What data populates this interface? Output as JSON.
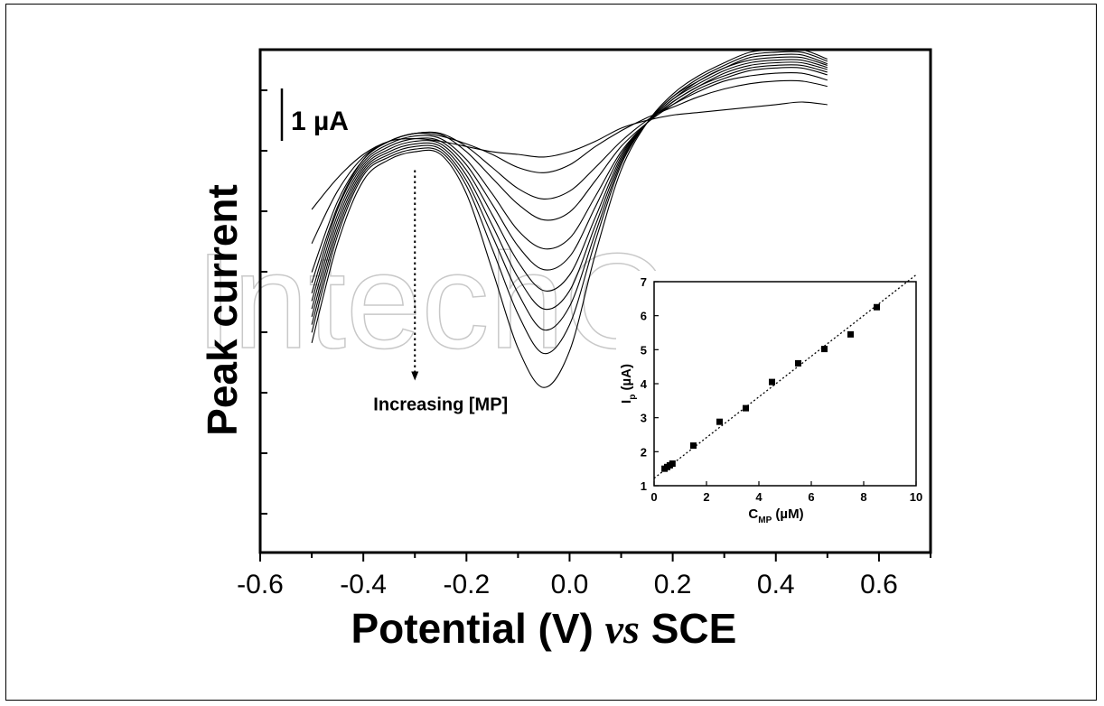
{
  "watermark": "IntechOpen",
  "chart_data": [
    {
      "type": "line",
      "xlabel_parts": [
        "Potential (V) ",
        "vs",
        " SCE"
      ],
      "ylabel": "Peak current",
      "xlim": [
        -0.6,
        0.7
      ],
      "xticks": [
        "-0.6",
        "-0.4",
        "-0.2",
        "0.0",
        "0.2",
        "0.4",
        "0.6"
      ],
      "ylim": [
        -8.7,
        0.9
      ],
      "grid": false,
      "scale_bar": {
        "label": "1 µA",
        "value": 1
      },
      "annotation": {
        "text": "Increasing [MP]",
        "x": -0.3,
        "y_from": -1.4,
        "y_to": -5.4
      },
      "x": [
        -0.5,
        -0.45,
        -0.4,
        -0.35,
        -0.3,
        -0.25,
        -0.2,
        -0.15,
        -0.1,
        -0.05,
        0.0,
        0.05,
        0.1,
        0.15,
        0.2,
        0.25,
        0.3,
        0.35,
        0.4,
        0.45,
        0.5
      ],
      "series": [
        {
          "values": [
            -2.15,
            -1.55,
            -1.1,
            -0.85,
            -0.8,
            -0.85,
            -0.95,
            -1.05,
            -1.1,
            -1.15,
            -1.05,
            -0.85,
            -0.6,
            -0.45,
            -0.35,
            -0.3,
            -0.25,
            -0.2,
            -0.15,
            -0.1,
            -0.15
          ]
        },
        {
          "values": [
            -2.8,
            -1.8,
            -1.15,
            -0.85,
            -0.7,
            -0.75,
            -0.9,
            -1.1,
            -1.35,
            -1.45,
            -1.3,
            -0.95,
            -0.65,
            -0.4,
            -0.2,
            0.0,
            0.15,
            0.25,
            0.3,
            0.3,
            0.2
          ]
        },
        {
          "values": [
            -3.35,
            -2.0,
            -1.2,
            -0.85,
            -0.7,
            -0.7,
            -0.95,
            -1.35,
            -1.75,
            -1.95,
            -1.8,
            -1.35,
            -0.85,
            -0.45,
            -0.15,
            0.1,
            0.3,
            0.4,
            0.45,
            0.45,
            0.32
          ]
        },
        {
          "values": [
            -3.55,
            -2.1,
            -1.2,
            -0.85,
            -0.7,
            -0.72,
            -1.05,
            -1.55,
            -2.05,
            -2.35,
            -2.2,
            -1.6,
            -0.95,
            -0.5,
            -0.15,
            0.15,
            0.35,
            0.5,
            0.55,
            0.55,
            0.42
          ]
        },
        {
          "values": [
            -3.75,
            -2.15,
            -1.25,
            -0.9,
            -0.75,
            -0.8,
            -1.2,
            -1.85,
            -2.55,
            -2.9,
            -2.7,
            -1.9,
            -1.05,
            -0.5,
            -0.1,
            0.2,
            0.4,
            0.55,
            0.6,
            0.6,
            0.47
          ]
        },
        {
          "values": [
            -3.9,
            -2.25,
            -1.3,
            -0.95,
            -0.8,
            -0.85,
            -1.3,
            -2.05,
            -2.85,
            -3.3,
            -3.05,
            -2.1,
            -1.1,
            -0.5,
            -0.1,
            0.2,
            0.45,
            0.6,
            0.65,
            0.65,
            0.52
          ]
        },
        {
          "values": [
            -4.05,
            -2.35,
            -1.35,
            -1.0,
            -0.85,
            -0.9,
            -1.4,
            -2.25,
            -3.15,
            -3.7,
            -3.4,
            -2.3,
            -1.15,
            -0.5,
            -0.05,
            0.25,
            0.5,
            0.65,
            0.7,
            0.7,
            0.56
          ]
        },
        {
          "values": [
            -4.2,
            -2.45,
            -1.4,
            -1.05,
            -0.9,
            -0.95,
            -1.5,
            -2.45,
            -3.45,
            -4.05,
            -3.7,
            -2.45,
            -1.2,
            -0.5,
            -0.05,
            0.3,
            0.55,
            0.7,
            0.75,
            0.75,
            0.6
          ]
        },
        {
          "values": [
            -4.35,
            -2.55,
            -1.45,
            -1.1,
            -0.95,
            -1.0,
            -1.6,
            -2.65,
            -3.75,
            -4.45,
            -4.0,
            -2.6,
            -1.25,
            -0.5,
            0.0,
            0.3,
            0.55,
            0.75,
            0.8,
            0.8,
            0.63
          ]
        },
        {
          "values": [
            -4.5,
            -2.65,
            -1.5,
            -1.15,
            -1.0,
            -1.05,
            -1.7,
            -2.9,
            -4.15,
            -4.9,
            -4.35,
            -2.75,
            -1.3,
            -0.5,
            0.0,
            0.35,
            0.6,
            0.8,
            0.85,
            0.85,
            0.68
          ]
        },
        {
          "values": [
            -4.7,
            -2.8,
            -1.6,
            -1.2,
            -1.05,
            -1.1,
            -1.85,
            -3.3,
            -4.8,
            -5.55,
            -4.85,
            -3.0,
            -1.4,
            -0.5,
            0.05,
            0.4,
            0.65,
            0.85,
            0.9,
            0.9,
            0.72
          ]
        }
      ]
    },
    {
      "type": "scatter",
      "xlabel": "C",
      "xlabel_sub": "MP",
      "xlabel_unit": " (µM)",
      "ylabel": "I",
      "ylabel_sub": "p",
      "ylabel_unit": " (µA)",
      "xlim": [
        0,
        10
      ],
      "ylim": [
        1,
        7
      ],
      "xticks": [
        "0",
        "2",
        "4",
        "6",
        "8",
        "10"
      ],
      "yticks": [
        "1",
        "2",
        "3",
        "4",
        "5",
        "6",
        "7"
      ],
      "grid": false,
      "points": [
        [
          0.4,
          1.5
        ],
        [
          0.5,
          1.55
        ],
        [
          0.6,
          1.6
        ],
        [
          0.7,
          1.65
        ],
        [
          1.5,
          2.18
        ],
        [
          2.5,
          2.88
        ],
        [
          3.5,
          3.28
        ],
        [
          4.5,
          4.05
        ],
        [
          5.5,
          4.6
        ],
        [
          6.5,
          5.02
        ],
        [
          7.5,
          5.45
        ],
        [
          8.5,
          6.25
        ]
      ],
      "fit_line": [
        [
          0,
          1.22
        ],
        [
          10,
          7.2
        ]
      ]
    }
  ]
}
